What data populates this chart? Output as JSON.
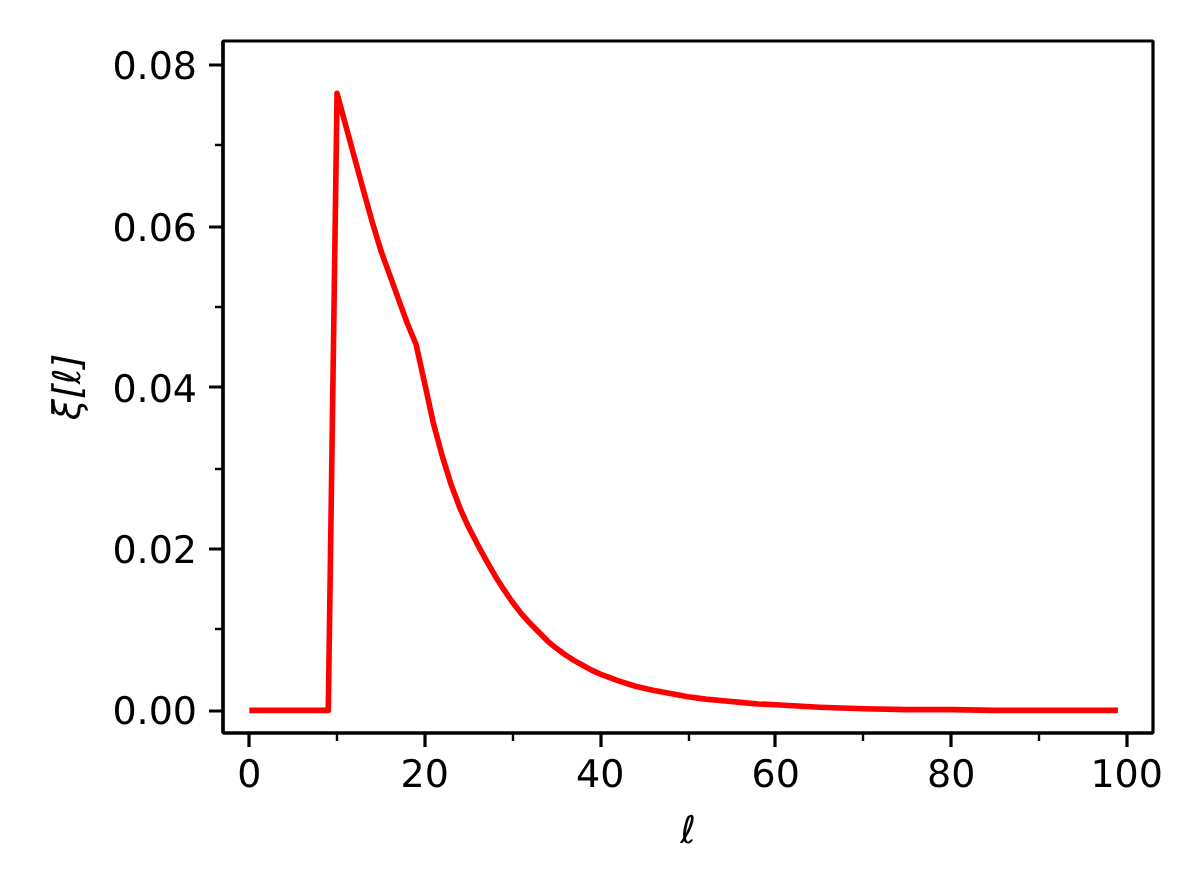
{
  "chart_data": {
    "type": "line",
    "xlabel": "ℓ",
    "ylabel": "ξ[ℓ]",
    "x": [
      0,
      1,
      2,
      3,
      4,
      5,
      6,
      7,
      8,
      9,
      10,
      11,
      12,
      13,
      14,
      15,
      16,
      17,
      18,
      19,
      20,
      21,
      22,
      23,
      24,
      25,
      26,
      27,
      28,
      29,
      30,
      31,
      32,
      33,
      34,
      35,
      36,
      37,
      38,
      39,
      40,
      42,
      44,
      46,
      48,
      50,
      52,
      54,
      56,
      58,
      60,
      65,
      70,
      75,
      80,
      85,
      90,
      95,
      99
    ],
    "series": [
      {
        "color": "#ff0000",
        "values": [
          0,
          0,
          0,
          0,
          0,
          0,
          0,
          0,
          0,
          0,
          0.0765,
          0.0725,
          0.0685,
          0.0645,
          0.0606,
          0.057,
          0.054,
          0.051,
          0.048,
          0.0454,
          0.0405,
          0.0355,
          0.0315,
          0.028,
          0.0251,
          0.0227,
          0.0206,
          0.0186,
          0.0167,
          0.015,
          0.0134,
          0.012,
          0.0108,
          0.0097,
          0.0086,
          0.0077,
          0.0069,
          0.0062,
          0.0056,
          0.005,
          0.0045,
          0.0037,
          0.003,
          0.0025,
          0.0021,
          0.0017,
          0.0014,
          0.0012,
          0.001,
          0.0008,
          0.0007,
          0.0004,
          0.0002,
          0.0001,
          0.0001,
          0,
          0,
          0,
          0
        ]
      }
    ],
    "xlim": [
      -3,
      103
    ],
    "ylim": [
      -0.0028,
      0.083
    ],
    "xticks": [
      0,
      {
        "value": 10,
        "label": null
      },
      20,
      {
        "value": 30,
        "label": null
      },
      40,
      {
        "value": 50,
        "label": null
      },
      60,
      {
        "value": 70,
        "label": null
      },
      80,
      {
        "value": 90,
        "label": null
      },
      100
    ],
    "yticks": [
      {
        "value": 0,
        "label": "0.00"
      },
      {
        "value": 0.01,
        "label": null
      },
      {
        "value": 0.02,
        "label": "0.02"
      },
      {
        "value": 0.03,
        "label": null
      },
      {
        "value": 0.04,
        "label": "0.04"
      },
      {
        "value": 0.05,
        "label": null
      },
      {
        "value": 0.06,
        "label": "0.06"
      },
      {
        "value": 0.07,
        "label": null
      },
      {
        "value": 0.08,
        "label": "0.08"
      }
    ],
    "grid": false,
    "marker": "none",
    "line_style": "solid"
  }
}
